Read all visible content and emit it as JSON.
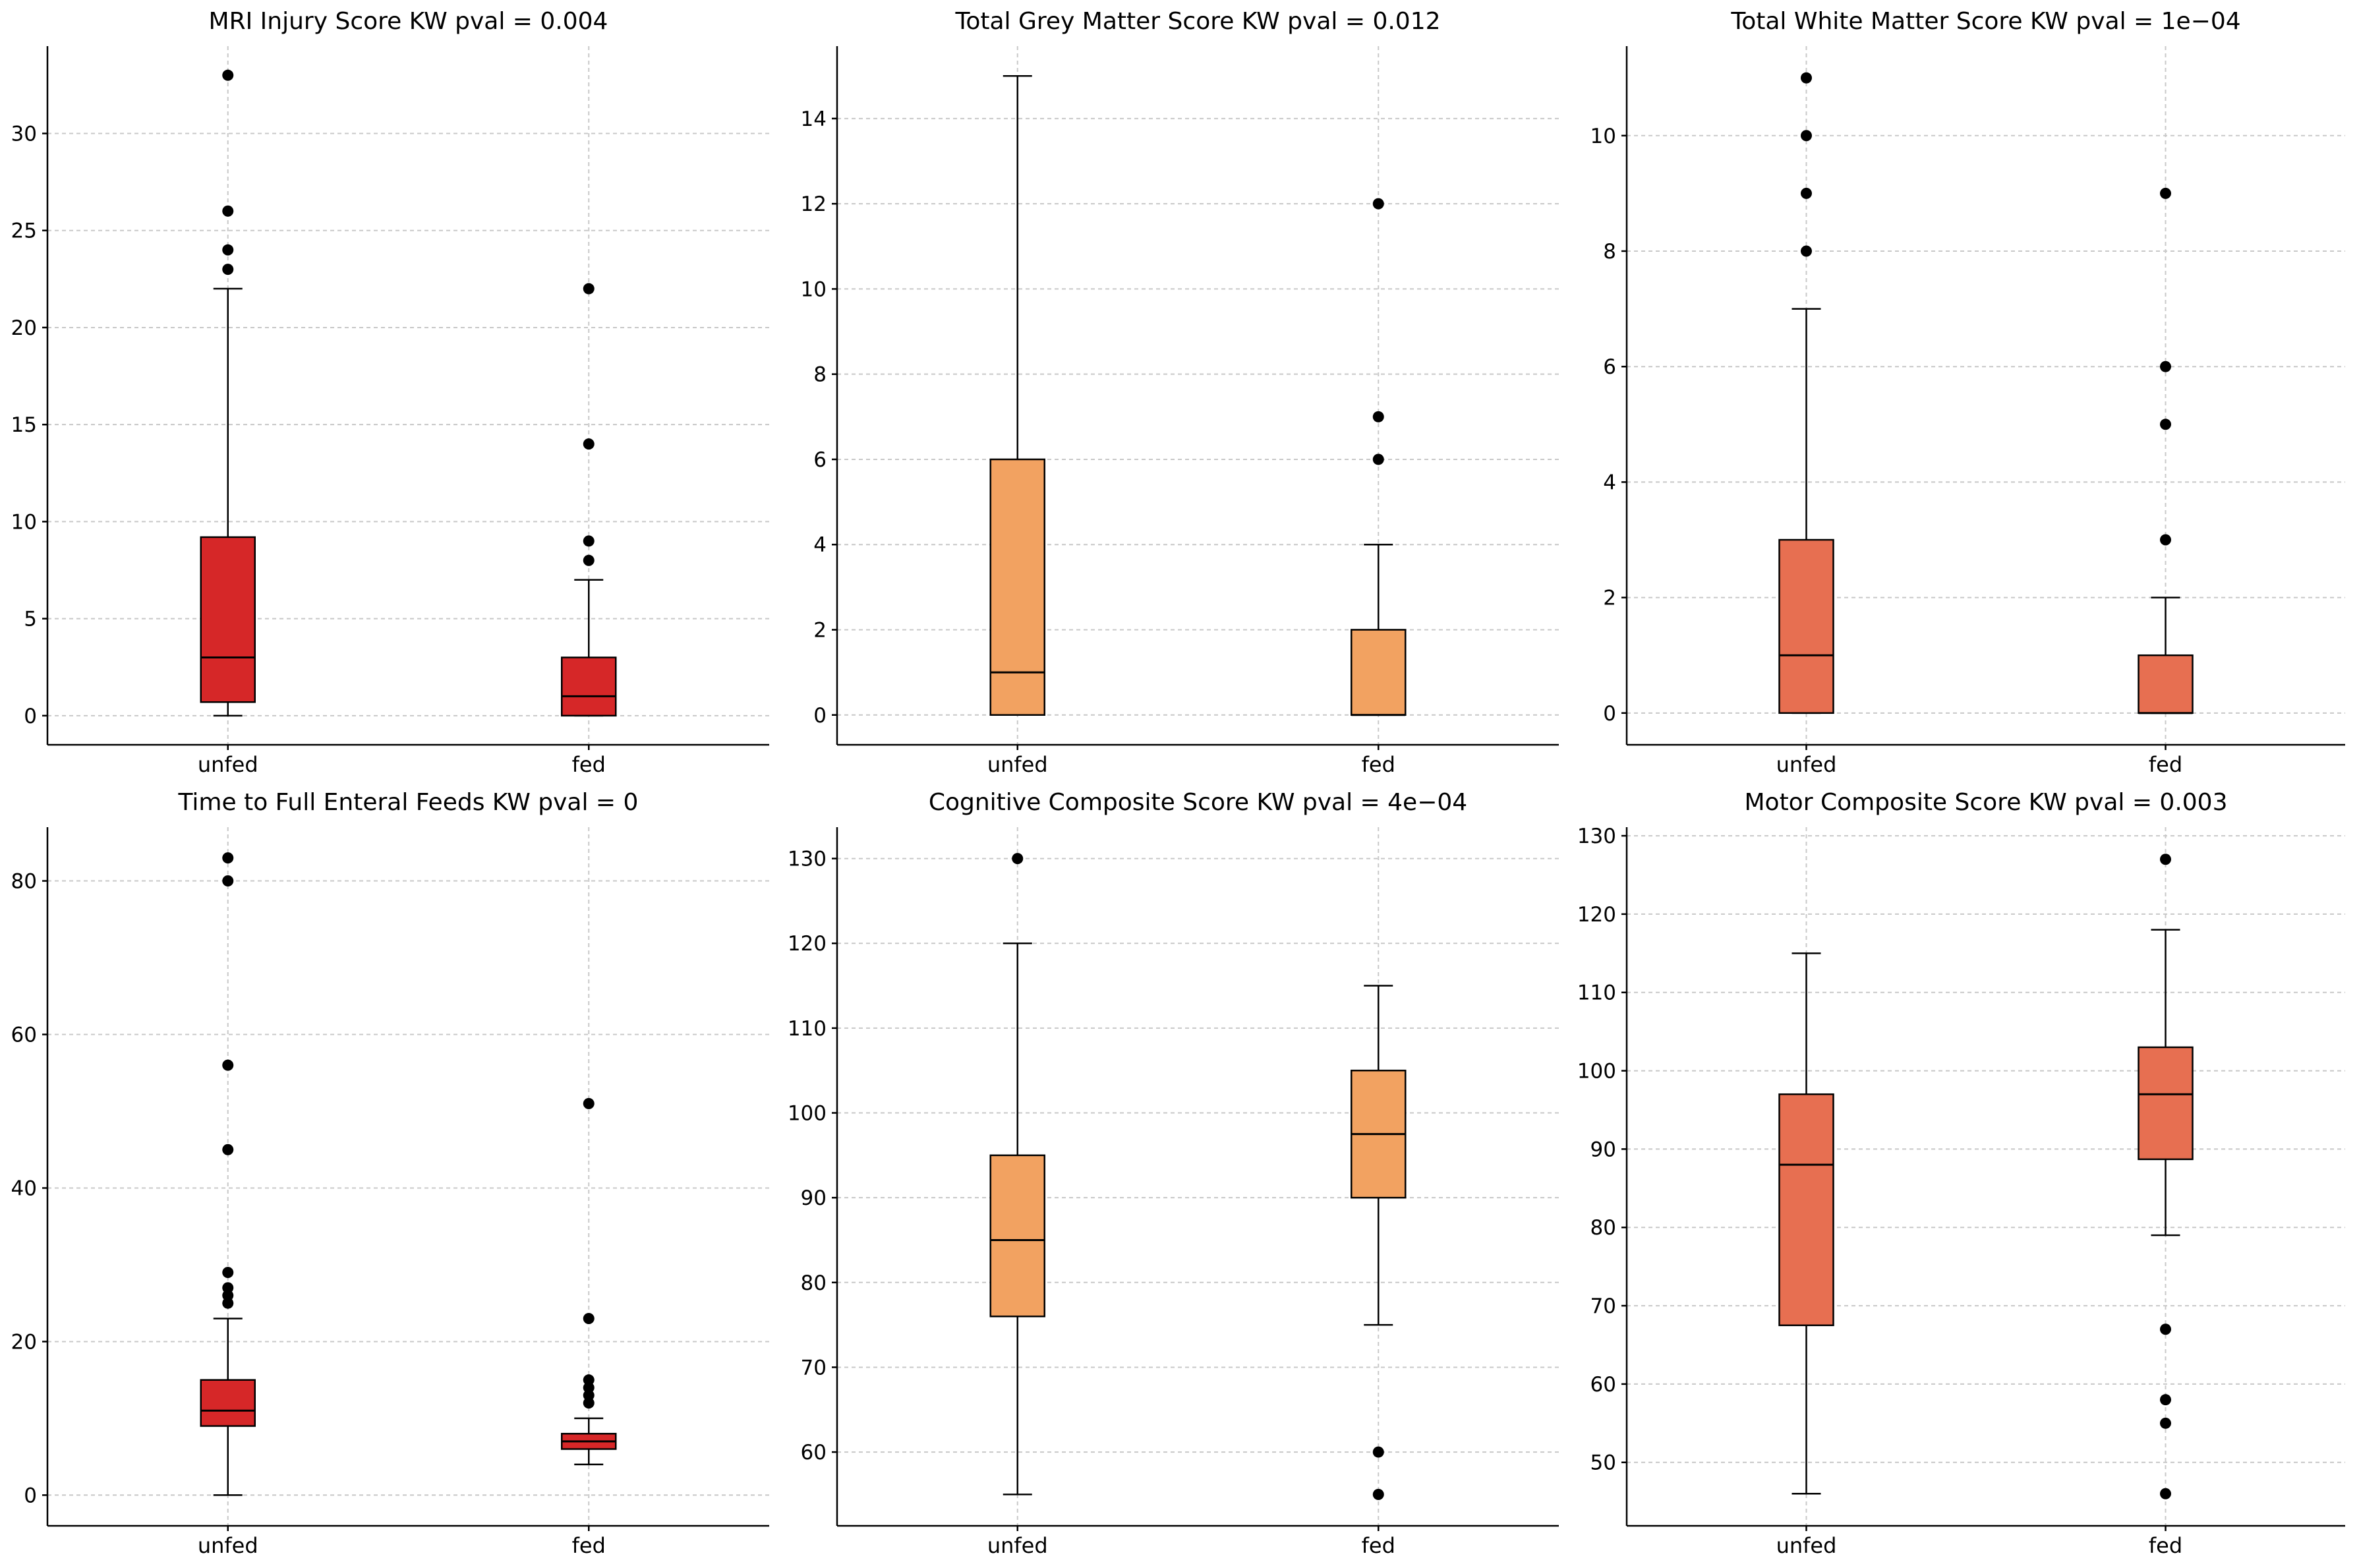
{
  "chart_data": [
    {
      "type": "box",
      "title": "MRI Injury Score KW pval = 0.004",
      "color": "#d62728",
      "categories": [
        "unfed",
        "fed"
      ],
      "ylim": [
        -1.5,
        34.5
      ],
      "yticks": [
        0,
        5,
        10,
        15,
        20,
        25,
        30
      ],
      "grid": true,
      "boxes": [
        {
          "category": "unfed",
          "min": 0,
          "q1": 0.7,
          "median": 3,
          "q3": 9.2,
          "max": 22,
          "outliers": [
            23,
            24,
            26,
            33
          ]
        },
        {
          "category": "fed",
          "min": 0,
          "q1": 0,
          "median": 1,
          "q3": 3,
          "max": 7,
          "outliers": [
            8,
            9,
            14,
            22
          ]
        }
      ]
    },
    {
      "type": "box",
      "title": "Total Grey Matter Score KW pval = 0.012",
      "color": "#f2a261",
      "categories": [
        "unfed",
        "fed"
      ],
      "ylim": [
        -0.7,
        15.7
      ],
      "yticks": [
        0,
        2,
        4,
        6,
        8,
        10,
        12,
        14
      ],
      "grid": true,
      "boxes": [
        {
          "category": "unfed",
          "min": 0,
          "q1": 0,
          "median": 1,
          "q3": 6,
          "max": 15,
          "outliers": []
        },
        {
          "category": "fed",
          "min": 0,
          "q1": 0,
          "median": 0,
          "q3": 2,
          "max": 4,
          "outliers": [
            6,
            7,
            12
          ]
        }
      ]
    },
    {
      "type": "box",
      "title": "Total White Matter Score KW pval = 1e−04",
      "color": "#e76f51",
      "categories": [
        "unfed",
        "fed"
      ],
      "ylim": [
        -0.55,
        11.55
      ],
      "yticks": [
        0,
        2,
        4,
        6,
        8,
        10
      ],
      "grid": true,
      "boxes": [
        {
          "category": "unfed",
          "min": 0,
          "q1": 0,
          "median": 1,
          "q3": 3,
          "max": 7,
          "outliers": [
            8,
            9,
            10,
            11
          ]
        },
        {
          "category": "fed",
          "min": 0,
          "q1": 0,
          "median": 0,
          "q3": 1,
          "max": 2,
          "outliers": [
            3,
            5,
            6,
            9
          ]
        }
      ]
    },
    {
      "type": "box",
      "title": "Time to Full Enteral Feeds KW pval = 0",
      "color": "#d62728",
      "categories": [
        "unfed",
        "fed"
      ],
      "ylim": [
        -4,
        87
      ],
      "yticks": [
        0,
        20,
        40,
        60,
        80
      ],
      "grid": true,
      "boxes": [
        {
          "category": "unfed",
          "min": 0,
          "q1": 9,
          "median": 11,
          "q3": 15,
          "max": 23,
          "outliers": [
            25,
            26,
            27,
            29,
            45,
            56,
            80,
            83
          ]
        },
        {
          "category": "fed",
          "min": 4,
          "q1": 6,
          "median": 7,
          "q3": 8,
          "max": 10,
          "outliers": [
            12,
            13,
            14,
            15,
            23,
            51
          ]
        }
      ]
    },
    {
      "type": "box",
      "title": "Cognitive Composite Score KW pval = 4e−04",
      "color": "#f2a261",
      "categories": [
        "unfed",
        "fed"
      ],
      "ylim": [
        51.3,
        133.7
      ],
      "yticks": [
        60,
        70,
        80,
        90,
        100,
        110,
        120,
        130
      ],
      "grid": true,
      "boxes": [
        {
          "category": "unfed",
          "min": 55,
          "q1": 76,
          "median": 85,
          "q3": 95,
          "max": 120,
          "outliers": [
            130
          ]
        },
        {
          "category": "fed",
          "min": 75,
          "q1": 90,
          "median": 97.5,
          "q3": 105,
          "max": 115,
          "outliers": [
            55,
            60
          ]
        }
      ]
    },
    {
      "type": "box",
      "title": "Motor Composite Score KW pval = 0.003",
      "color": "#e76f51",
      "categories": [
        "unfed",
        "fed"
      ],
      "ylim": [
        41.9,
        131.1
      ],
      "yticks": [
        50,
        60,
        70,
        80,
        90,
        100,
        110,
        120,
        130
      ],
      "grid": true,
      "boxes": [
        {
          "category": "unfed",
          "min": 46,
          "q1": 67.5,
          "median": 88,
          "q3": 97,
          "max": 115,
          "outliers": []
        },
        {
          "category": "fed",
          "min": 79,
          "q1": 88.7,
          "median": 97,
          "q3": 103,
          "max": 118,
          "outliers": [
            46,
            55,
            58,
            67,
            127
          ]
        }
      ]
    }
  ]
}
